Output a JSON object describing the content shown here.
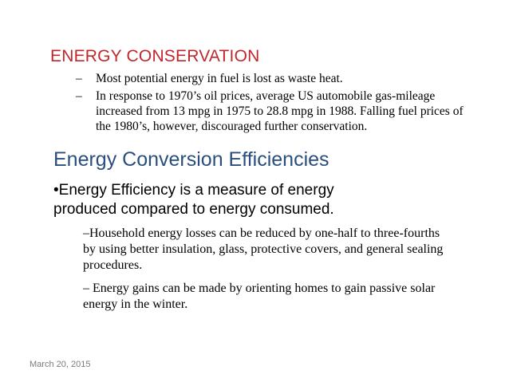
{
  "slide": {
    "title": "ENERGY CONSERVATION",
    "top_items": [
      {
        "dash": "–",
        "text": "Most potential energy in fuel is lost as waste heat."
      },
      {
        "dash": "–",
        "text": "In response to 1970’s oil prices, average US automobile gas-mileage increased from 13 mpg in 1975 to 28.8 mpg in 1988.  Falling fuel prices of the 1980’s, however, discouraged further conservation."
      }
    ],
    "section_title": "Energy Conversion Efficiencies",
    "bullet": {
      "marker": "•",
      "text": "Energy Efficiency is a measure of energy produced compared to energy consumed."
    },
    "sub_items": [
      "–Household energy losses can be reduced by one-half to three-fourths by using better insulation, glass, protective covers, and general sealing procedures.",
      "– Energy gains can be made by orienting homes to gain passive solar energy in the winter."
    ],
    "footer_date": "March 20, 2015"
  }
}
